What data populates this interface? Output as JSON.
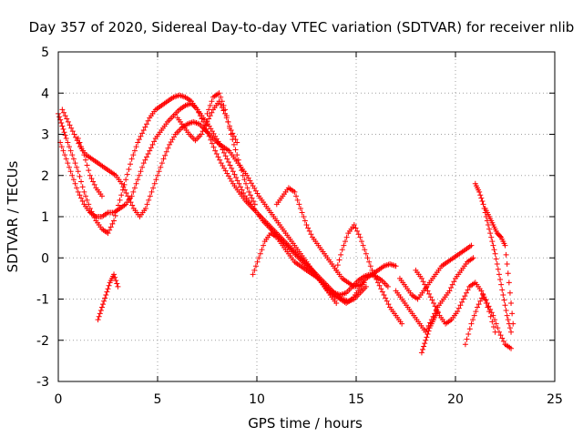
{
  "chart_data": {
    "type": "scatter",
    "title": "Day 357 of 2020, Sidereal Day-to-day VTEC variation (SDTVAR) for receiver nlib",
    "xlabel": "GPS time / hours",
    "ylabel": "SDTVAR / TECUs",
    "xlim": [
      0,
      25
    ],
    "ylim": [
      -3,
      5
    ],
    "xticks": [
      0,
      5,
      10,
      15,
      20,
      25
    ],
    "yticks": [
      -3,
      -2,
      -1,
      0,
      1,
      2,
      3,
      4,
      5
    ],
    "grid": true,
    "marker": "+",
    "color": "#ff0000",
    "series": [
      {
        "name": "s1",
        "x": [
          0.0,
          0.2,
          0.4,
          0.7,
          1.0,
          1.3,
          1.6,
          1.9,
          2.2,
          2.5,
          2.8,
          3.1,
          3.4,
          3.7,
          4.0,
          4.3,
          4.6,
          4.9,
          5.2,
          5.5,
          5.8,
          6.1,
          6.4,
          6.7,
          7.0,
          7.3,
          7.6,
          7.9,
          8.2,
          8.5,
          8.8,
          9.1,
          9.4,
          9.7,
          10.0,
          10.3,
          10.6,
          10.9,
          11.2,
          11.5,
          11.8,
          12.1,
          12.4,
          12.7,
          13.0,
          13.3,
          13.6,
          13.9,
          14.2,
          14.5,
          14.8,
          15.1,
          15.4,
          15.7,
          16.0,
          16.3,
          16.6
        ],
        "y": [
          3.5,
          3.2,
          2.9,
          2.5,
          2.1,
          1.6,
          1.2,
          0.9,
          0.7,
          0.6,
          0.9,
          1.4,
          1.9,
          2.4,
          2.8,
          3.1,
          3.4,
          3.6,
          3.7,
          3.8,
          3.9,
          3.95,
          3.9,
          3.8,
          3.6,
          3.4,
          3.2,
          2.95,
          2.7,
          2.4,
          2.1,
          1.8,
          1.5,
          1.3,
          1.1,
          0.9,
          0.75,
          0.6,
          0.45,
          0.3,
          0.15,
          0.0,
          -0.15,
          -0.3,
          -0.45,
          -0.6,
          -0.75,
          -0.85,
          -0.9,
          -0.85,
          -0.7,
          -0.55,
          -0.45,
          -0.4,
          -0.45,
          -0.55,
          -0.7
        ]
      },
      {
        "name": "s2",
        "x": [
          0.1,
          0.4,
          0.7,
          1.0,
          1.3,
          1.6,
          1.9,
          2.2,
          2.5,
          2.8,
          3.1,
          3.4,
          3.7,
          4.0,
          4.3,
          4.6,
          4.9,
          5.2,
          5.5,
          5.8,
          6.1,
          6.4,
          6.7,
          7.0,
          7.3,
          7.6,
          7.9,
          8.2,
          8.5,
          8.8,
          9.1,
          9.4,
          9.7,
          10.0,
          10.3,
          10.6,
          10.9,
          11.2,
          11.5,
          11.8,
          12.1,
          12.4,
          12.7,
          13.0,
          13.3,
          13.6,
          13.9,
          14.2,
          14.5,
          14.8,
          15.1,
          15.4
        ],
        "y": [
          2.8,
          2.4,
          2.0,
          1.6,
          1.3,
          1.1,
          1.0,
          1.0,
          1.1,
          1.1,
          1.2,
          1.3,
          1.5,
          1.9,
          2.3,
          2.6,
          2.9,
          3.1,
          3.3,
          3.45,
          3.6,
          3.7,
          3.75,
          3.6,
          3.3,
          2.95,
          2.6,
          2.3,
          2.05,
          1.8,
          1.6,
          1.4,
          1.25,
          1.1,
          0.95,
          0.8,
          0.65,
          0.5,
          0.35,
          0.2,
          0.05,
          -0.1,
          -0.25,
          -0.4,
          -0.55,
          -0.7,
          -0.85,
          -1.0,
          -1.1,
          -1.0,
          -0.8,
          -0.6
        ]
      },
      {
        "name": "s3",
        "x": [
          0.2,
          0.5,
          0.8,
          1.1,
          1.4,
          1.7,
          2.0,
          2.3,
          2.6,
          2.9,
          3.2,
          3.5,
          3.8,
          4.1,
          4.4,
          4.7,
          5.0,
          5.3,
          5.6,
          5.9,
          6.2,
          6.5,
          6.8,
          7.1,
          7.4,
          7.7,
          8.0,
          8.3,
          8.6,
          8.9,
          9.2,
          9.5,
          9.8,
          10.1,
          10.4,
          10.7,
          11.0,
          11.3,
          11.6,
          11.9,
          12.2,
          12.5,
          12.8,
          13.1,
          13.4,
          13.7,
          14.0,
          14.3,
          14.6,
          14.9,
          15.2,
          15.5
        ],
        "y": [
          3.6,
          3.3,
          3.0,
          2.7,
          2.5,
          2.4,
          2.3,
          2.2,
          2.1,
          2.0,
          1.8,
          1.5,
          1.2,
          1.0,
          1.2,
          1.6,
          2.0,
          2.4,
          2.75,
          3.0,
          3.15,
          3.25,
          3.3,
          3.25,
          3.1,
          2.95,
          2.8,
          2.7,
          2.6,
          2.4,
          2.2,
          2.0,
          1.75,
          1.5,
          1.3,
          1.1,
          0.9,
          0.7,
          0.5,
          0.3,
          0.1,
          -0.1,
          -0.3,
          -0.5,
          -0.7,
          -0.85,
          -0.95,
          -1.0,
          -1.05,
          -1.0,
          -0.85,
          -0.7
        ]
      },
      {
        "name": "s4",
        "x": [
          6.0,
          6.3,
          6.6,
          6.9,
          7.2,
          7.5,
          7.8,
          8.1,
          8.4,
          8.7,
          9.0
        ],
        "y": [
          3.4,
          3.2,
          3.0,
          2.85,
          3.0,
          3.3,
          3.6,
          3.8,
          3.5,
          3.1,
          2.8
        ]
      },
      {
        "name": "s5",
        "x": [
          7.5,
          7.8,
          8.1,
          8.4,
          8.7,
          9.0,
          9.3,
          9.6,
          9.9
        ],
        "y": [
          3.5,
          3.9,
          4.0,
          3.6,
          3.0,
          2.5,
          2.0,
          1.6,
          1.3
        ]
      },
      {
        "name": "s6",
        "x": [
          11.0,
          11.3,
          11.6,
          11.9,
          12.2,
          12.5,
          12.8,
          13.1,
          13.4,
          13.7,
          14.0,
          14.3,
          14.6,
          14.9,
          15.2,
          15.5,
          15.8,
          16.1,
          16.4,
          16.7,
          17.0
        ],
        "y": [
          1.3,
          1.5,
          1.7,
          1.6,
          1.2,
          0.8,
          0.5,
          0.3,
          0.1,
          -0.1,
          -0.3,
          -0.5,
          -0.6,
          -0.7,
          -0.65,
          -0.5,
          -0.4,
          -0.3,
          -0.2,
          -0.15,
          -0.2
        ]
      },
      {
        "name": "s7",
        "x": [
          14.0,
          14.3,
          14.6,
          14.9,
          15.2,
          15.5,
          15.8,
          16.1,
          16.4,
          16.7,
          17.0,
          17.3
        ],
        "y": [
          -0.3,
          0.2,
          0.6,
          0.8,
          0.5,
          0.1,
          -0.3,
          -0.6,
          -0.9,
          -1.2,
          -1.4,
          -1.6
        ]
      },
      {
        "name": "s8",
        "x": [
          1.0,
          1.3,
          1.6,
          1.9,
          2.2
        ],
        "y": [
          2.9,
          2.5,
          2.0,
          1.7,
          1.5
        ]
      },
      {
        "name": "s9",
        "x": [
          2.0,
          2.2,
          2.4,
          2.6,
          2.8,
          3.0
        ],
        "y": [
          -1.5,
          -1.2,
          -0.9,
          -0.6,
          -0.4,
          -0.7
        ]
      },
      {
        "name": "s10",
        "x": [
          9.8,
          10.1,
          10.4,
          10.7,
          11.0,
          11.3,
          11.6,
          11.9,
          12.2,
          12.5,
          12.8,
          13.1,
          13.4,
          13.7,
          14.0
        ],
        "y": [
          -0.4,
          0.0,
          0.4,
          0.6,
          0.5,
          0.3,
          0.1,
          -0.1,
          -0.2,
          -0.3,
          -0.4,
          -0.5,
          -0.7,
          -0.9,
          -1.1
        ]
      },
      {
        "name": "s11",
        "x": [
          17.2,
          17.5,
          17.8,
          18.1,
          18.4,
          18.7,
          19.0,
          19.3,
          19.6,
          19.9,
          20.2,
          20.5,
          20.8
        ],
        "y": [
          -0.5,
          -0.7,
          -0.9,
          -1.0,
          -0.8,
          -0.6,
          -0.4,
          -0.2,
          -0.1,
          0.0,
          0.1,
          0.2,
          0.3
        ]
      },
      {
        "name": "s12",
        "x": [
          17.0,
          17.3,
          17.6,
          17.9,
          18.2,
          18.5,
          18.8,
          19.1,
          19.4,
          19.7,
          20.0,
          20.3,
          20.6,
          20.9
        ],
        "y": [
          -0.8,
          -1.0,
          -1.2,
          -1.4,
          -1.6,
          -1.8,
          -1.5,
          -1.2,
          -1.0,
          -0.8,
          -0.5,
          -0.3,
          -0.1,
          0.0
        ]
      },
      {
        "name": "s13",
        "x": [
          18.0,
          18.3,
          18.6,
          18.9,
          19.2,
          19.5,
          19.8,
          20.1,
          20.4,
          20.7,
          21.0,
          21.3,
          21.6,
          21.9,
          22.2,
          22.5,
          22.8
        ],
        "y": [
          -0.3,
          -0.5,
          -0.8,
          -1.1,
          -1.4,
          -1.6,
          -1.5,
          -1.3,
          -1.0,
          -0.7,
          -0.6,
          -0.8,
          -1.1,
          -1.4,
          -1.8,
          -2.1,
          -2.2
        ]
      },
      {
        "name": "s14",
        "x": [
          21.0,
          21.2,
          21.4,
          21.6,
          21.8,
          22.0,
          22.2,
          22.4,
          22.6,
          22.8
        ],
        "y": [
          1.8,
          1.6,
          1.3,
          0.9,
          0.5,
          0.1,
          -0.4,
          -0.9,
          -1.4,
          -1.8
        ]
      },
      {
        "name": "s15",
        "x": [
          21.5,
          21.7,
          21.9,
          22.1,
          22.3,
          22.5,
          22.7,
          22.9
        ],
        "y": [
          1.2,
          1.0,
          0.8,
          0.6,
          0.5,
          0.3,
          -0.6,
          -1.6
        ]
      },
      {
        "name": "s16",
        "x": [
          18.3,
          18.5,
          18.7,
          18.9,
          19.1
        ],
        "y": [
          -2.3,
          -2.0,
          -1.7,
          -1.5,
          -1.3
        ]
      },
      {
        "name": "s17",
        "x": [
          20.5,
          20.8,
          21.1,
          21.4,
          21.7,
          22.0
        ],
        "y": [
          -2.1,
          -1.6,
          -1.2,
          -0.9,
          -1.3,
          -1.8
        ]
      }
    ]
  }
}
